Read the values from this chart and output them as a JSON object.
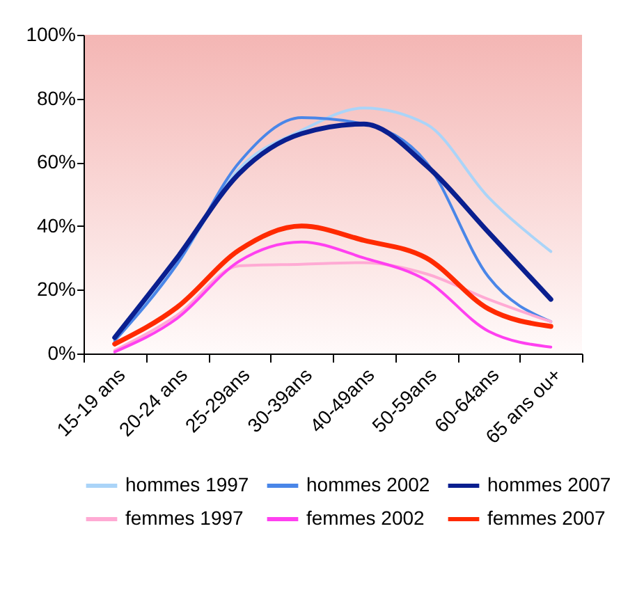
{
  "chart_data": {
    "type": "line",
    "categories": [
      "15-19 ans",
      "20-24 ans",
      "25-29ans",
      "30-39ans",
      "40-49ans",
      "50-59ans",
      "60-64ans",
      "65 ans ou+"
    ],
    "series": [
      {
        "name": "hommes 1997",
        "color": "#aad4f8",
        "values": [
          5,
          28,
          58,
          70,
          77,
          72,
          49,
          32
        ]
      },
      {
        "name": "hommes 2002",
        "color": "#4a86e8",
        "values": [
          4,
          28,
          60,
          74,
          72,
          60,
          24,
          10
        ]
      },
      {
        "name": "hommes 2007",
        "color": "#0a1f8f",
        "values": [
          5,
          30,
          56.5,
          69,
          72,
          59,
          38,
          17
        ]
      },
      {
        "name": "femmes 1997",
        "color": "#ffaad4",
        "values": [
          1,
          12,
          27.5,
          28,
          28.5,
          25,
          17,
          10
        ]
      },
      {
        "name": "femmes 2002",
        "color": "#ff40f0",
        "values": [
          0.5,
          11,
          29,
          35,
          30,
          23,
          7,
          2
        ]
      },
      {
        "name": "femmes 2007",
        "color": "#ff2a00",
        "values": [
          3,
          14.5,
          32.5,
          40,
          35.5,
          30,
          14,
          8.5
        ]
      }
    ],
    "ylim": [
      0,
      100
    ],
    "yticks": [
      {
        "value": 0,
        "label": "0%"
      },
      {
        "value": 20,
        "label": "20%"
      },
      {
        "value": 40,
        "label": "40%"
      },
      {
        "value": 60,
        "label": "60%"
      },
      {
        "value": 80,
        "label": "80%"
      },
      {
        "value": 100,
        "label": "100%"
      }
    ],
    "grid": false,
    "legend": "bottom"
  }
}
